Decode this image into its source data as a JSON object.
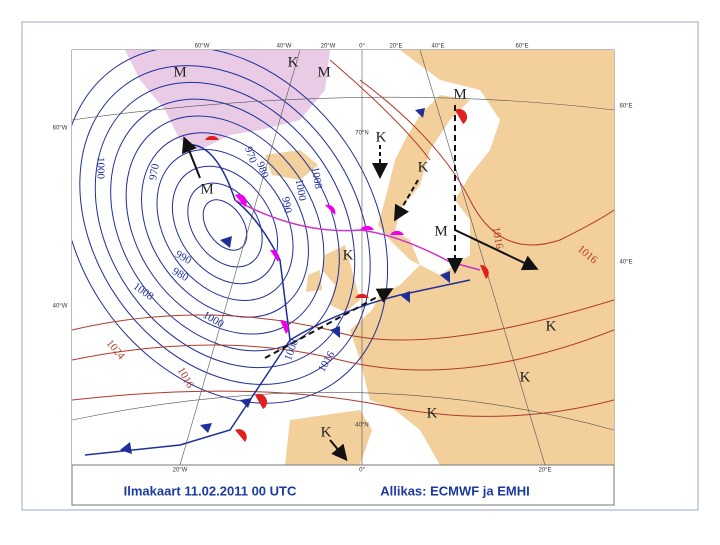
{
  "caption": {
    "title": "Ilmakaart 11.02.2011 00 UTC",
    "source": "Allikas: ECMWF ja EMHI"
  },
  "map": {
    "top_coordinate_labels": [
      "60°W",
      "40°W",
      "20°W",
      "0°",
      "20°E",
      "40°E",
      "60°E"
    ],
    "side_coordinate_labels": [
      "60°W",
      "40°W",
      "60°E",
      "40°E",
      "70°N",
      "40°N"
    ],
    "bottom_coordinate_labels": [
      "20°W",
      "0°",
      "20°E"
    ],
    "pressure_centers": [
      "M",
      "K",
      "M",
      "M",
      "K",
      "K",
      "M",
      "M",
      "K",
      "K",
      "K",
      "K",
      "K"
    ],
    "isobar_labels": [
      "1000",
      "970",
      "970",
      "980",
      "990",
      "1000",
      "1008",
      "990",
      "980",
      "1008",
      "1000",
      "1024",
      "1016",
      "1008",
      "1016",
      "1016",
      "1016"
    ]
  }
}
